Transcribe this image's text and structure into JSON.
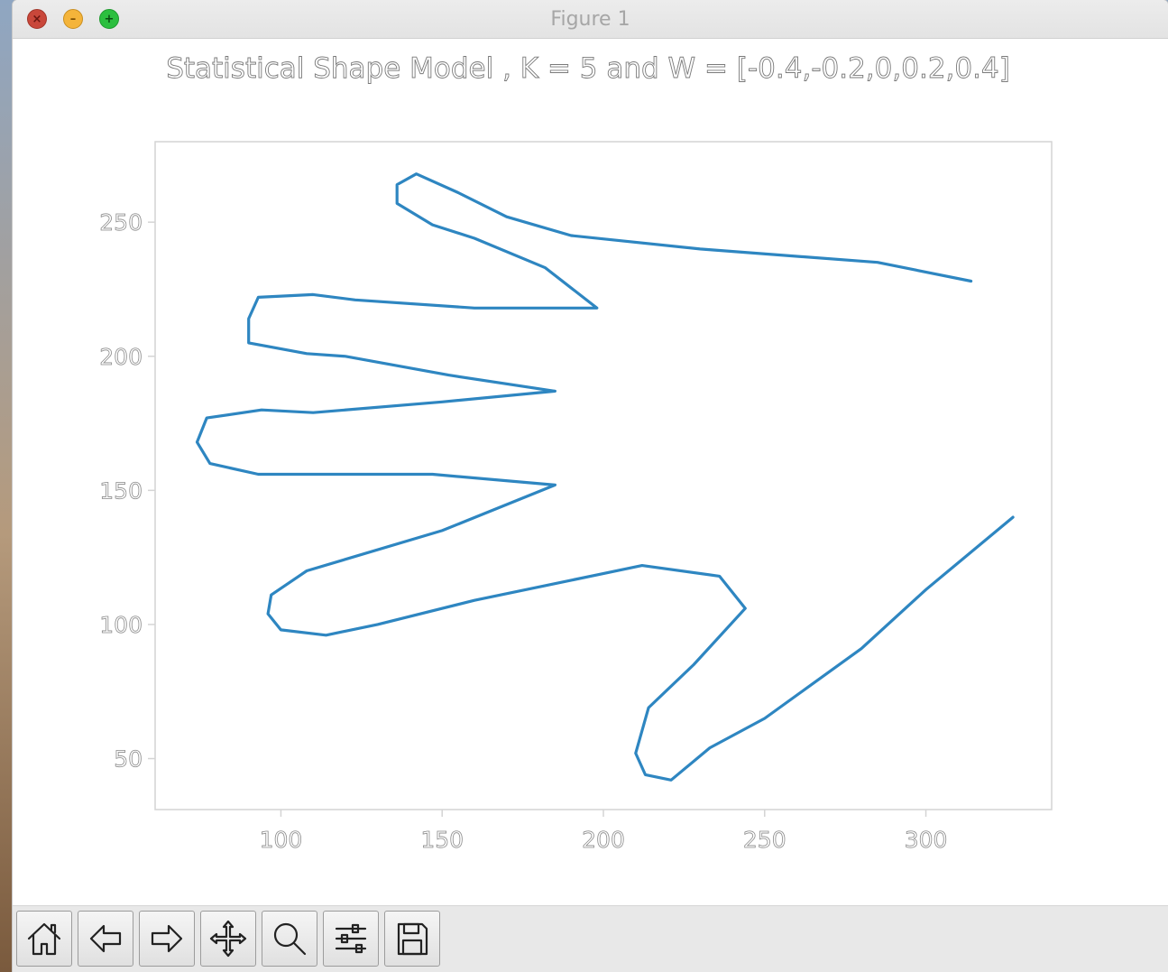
{
  "window": {
    "title": "Figure 1",
    "buttons": {
      "close": "×",
      "minimize": "–",
      "zoom": "+"
    }
  },
  "toolbar": {
    "tools": [
      "home-icon",
      "back-arrow-icon",
      "forward-arrow-icon",
      "pan-icon",
      "zoom-magnifier-icon",
      "configure-subplots-icon",
      "save-icon"
    ]
  },
  "chart_data": {
    "type": "line",
    "title": "Statistical Shape Model , K = 5 and W = [-0.4,-0.2,0,0.2,0.4]",
    "xlabel": "",
    "ylabel": "",
    "xlim": [
      61,
      339
    ],
    "ylim": [
      31,
      280
    ],
    "xticks": [
      100,
      150,
      200,
      250,
      300
    ],
    "yticks": [
      50,
      100,
      150,
      200,
      250
    ],
    "grid": false,
    "series": [
      {
        "color": "#2e86c1",
        "x": [
          314,
          285,
          230,
          190,
          170,
          155,
          142,
          136,
          136,
          147,
          160,
          182,
          198,
          160,
          123,
          110,
          93,
          90,
          90,
          108,
          120,
          152,
          185,
          150,
          110,
          94,
          77,
          74,
          78,
          93,
          108,
          147,
          185,
          150,
          108,
          97,
          96,
          100,
          114,
          130,
          160,
          212,
          236,
          244,
          228,
          214,
          210,
          213,
          221,
          233,
          250,
          280,
          300,
          327
        ],
        "y": [
          228,
          235,
          240,
          245,
          252,
          261,
          268,
          264,
          257,
          249,
          244,
          233,
          218,
          218,
          221,
          223,
          222,
          214,
          205,
          201,
          200,
          193,
          187,
          183,
          179,
          180,
          177,
          168,
          160,
          156,
          156,
          156,
          152,
          135,
          120,
          111,
          104,
          98,
          96,
          100,
          109,
          122,
          118,
          106,
          85,
          69,
          52,
          44,
          42,
          54,
          65,
          91,
          113,
          140
        ]
      }
    ]
  }
}
